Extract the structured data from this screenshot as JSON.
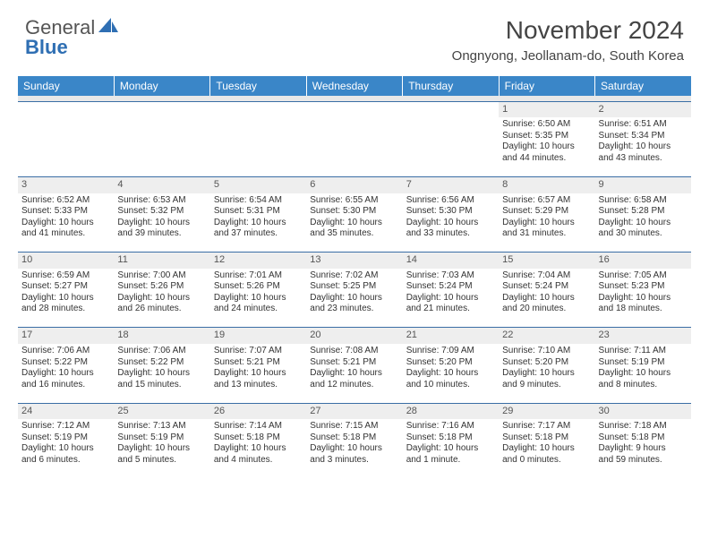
{
  "brand": {
    "name_part1": "General",
    "name_part2": "Blue"
  },
  "title": "November 2024",
  "location": "Ongnyong, Jeollanam-do, South Korea",
  "colors": {
    "header_bg": "#3a86c8",
    "header_text": "#ffffff",
    "daynum_bg": "#eeeeee",
    "row_divider": "#3a6ea5",
    "brand_gray": "#555555",
    "brand_blue": "#2f6fb3"
  },
  "weekdays": [
    "Sunday",
    "Monday",
    "Tuesday",
    "Wednesday",
    "Thursday",
    "Friday",
    "Saturday"
  ],
  "weeks": [
    [
      null,
      null,
      null,
      null,
      null,
      {
        "n": "1",
        "sr": "Sunrise: 6:50 AM",
        "ss": "Sunset: 5:35 PM",
        "dl1": "Daylight: 10 hours",
        "dl2": "and 44 minutes."
      },
      {
        "n": "2",
        "sr": "Sunrise: 6:51 AM",
        "ss": "Sunset: 5:34 PM",
        "dl1": "Daylight: 10 hours",
        "dl2": "and 43 minutes."
      }
    ],
    [
      {
        "n": "3",
        "sr": "Sunrise: 6:52 AM",
        "ss": "Sunset: 5:33 PM",
        "dl1": "Daylight: 10 hours",
        "dl2": "and 41 minutes."
      },
      {
        "n": "4",
        "sr": "Sunrise: 6:53 AM",
        "ss": "Sunset: 5:32 PM",
        "dl1": "Daylight: 10 hours",
        "dl2": "and 39 minutes."
      },
      {
        "n": "5",
        "sr": "Sunrise: 6:54 AM",
        "ss": "Sunset: 5:31 PM",
        "dl1": "Daylight: 10 hours",
        "dl2": "and 37 minutes."
      },
      {
        "n": "6",
        "sr": "Sunrise: 6:55 AM",
        "ss": "Sunset: 5:30 PM",
        "dl1": "Daylight: 10 hours",
        "dl2": "and 35 minutes."
      },
      {
        "n": "7",
        "sr": "Sunrise: 6:56 AM",
        "ss": "Sunset: 5:30 PM",
        "dl1": "Daylight: 10 hours",
        "dl2": "and 33 minutes."
      },
      {
        "n": "8",
        "sr": "Sunrise: 6:57 AM",
        "ss": "Sunset: 5:29 PM",
        "dl1": "Daylight: 10 hours",
        "dl2": "and 31 minutes."
      },
      {
        "n": "9",
        "sr": "Sunrise: 6:58 AM",
        "ss": "Sunset: 5:28 PM",
        "dl1": "Daylight: 10 hours",
        "dl2": "and 30 minutes."
      }
    ],
    [
      {
        "n": "10",
        "sr": "Sunrise: 6:59 AM",
        "ss": "Sunset: 5:27 PM",
        "dl1": "Daylight: 10 hours",
        "dl2": "and 28 minutes."
      },
      {
        "n": "11",
        "sr": "Sunrise: 7:00 AM",
        "ss": "Sunset: 5:26 PM",
        "dl1": "Daylight: 10 hours",
        "dl2": "and 26 minutes."
      },
      {
        "n": "12",
        "sr": "Sunrise: 7:01 AM",
        "ss": "Sunset: 5:26 PM",
        "dl1": "Daylight: 10 hours",
        "dl2": "and 24 minutes."
      },
      {
        "n": "13",
        "sr": "Sunrise: 7:02 AM",
        "ss": "Sunset: 5:25 PM",
        "dl1": "Daylight: 10 hours",
        "dl2": "and 23 minutes."
      },
      {
        "n": "14",
        "sr": "Sunrise: 7:03 AM",
        "ss": "Sunset: 5:24 PM",
        "dl1": "Daylight: 10 hours",
        "dl2": "and 21 minutes."
      },
      {
        "n": "15",
        "sr": "Sunrise: 7:04 AM",
        "ss": "Sunset: 5:24 PM",
        "dl1": "Daylight: 10 hours",
        "dl2": "and 20 minutes."
      },
      {
        "n": "16",
        "sr": "Sunrise: 7:05 AM",
        "ss": "Sunset: 5:23 PM",
        "dl1": "Daylight: 10 hours",
        "dl2": "and 18 minutes."
      }
    ],
    [
      {
        "n": "17",
        "sr": "Sunrise: 7:06 AM",
        "ss": "Sunset: 5:22 PM",
        "dl1": "Daylight: 10 hours",
        "dl2": "and 16 minutes."
      },
      {
        "n": "18",
        "sr": "Sunrise: 7:06 AM",
        "ss": "Sunset: 5:22 PM",
        "dl1": "Daylight: 10 hours",
        "dl2": "and 15 minutes."
      },
      {
        "n": "19",
        "sr": "Sunrise: 7:07 AM",
        "ss": "Sunset: 5:21 PM",
        "dl1": "Daylight: 10 hours",
        "dl2": "and 13 minutes."
      },
      {
        "n": "20",
        "sr": "Sunrise: 7:08 AM",
        "ss": "Sunset: 5:21 PM",
        "dl1": "Daylight: 10 hours",
        "dl2": "and 12 minutes."
      },
      {
        "n": "21",
        "sr": "Sunrise: 7:09 AM",
        "ss": "Sunset: 5:20 PM",
        "dl1": "Daylight: 10 hours",
        "dl2": "and 10 minutes."
      },
      {
        "n": "22",
        "sr": "Sunrise: 7:10 AM",
        "ss": "Sunset: 5:20 PM",
        "dl1": "Daylight: 10 hours",
        "dl2": "and 9 minutes."
      },
      {
        "n": "23",
        "sr": "Sunrise: 7:11 AM",
        "ss": "Sunset: 5:19 PM",
        "dl1": "Daylight: 10 hours",
        "dl2": "and 8 minutes."
      }
    ],
    [
      {
        "n": "24",
        "sr": "Sunrise: 7:12 AM",
        "ss": "Sunset: 5:19 PM",
        "dl1": "Daylight: 10 hours",
        "dl2": "and 6 minutes."
      },
      {
        "n": "25",
        "sr": "Sunrise: 7:13 AM",
        "ss": "Sunset: 5:19 PM",
        "dl1": "Daylight: 10 hours",
        "dl2": "and 5 minutes."
      },
      {
        "n": "26",
        "sr": "Sunrise: 7:14 AM",
        "ss": "Sunset: 5:18 PM",
        "dl1": "Daylight: 10 hours",
        "dl2": "and 4 minutes."
      },
      {
        "n": "27",
        "sr": "Sunrise: 7:15 AM",
        "ss": "Sunset: 5:18 PM",
        "dl1": "Daylight: 10 hours",
        "dl2": "and 3 minutes."
      },
      {
        "n": "28",
        "sr": "Sunrise: 7:16 AM",
        "ss": "Sunset: 5:18 PM",
        "dl1": "Daylight: 10 hours",
        "dl2": "and 1 minute."
      },
      {
        "n": "29",
        "sr": "Sunrise: 7:17 AM",
        "ss": "Sunset: 5:18 PM",
        "dl1": "Daylight: 10 hours",
        "dl2": "and 0 minutes."
      },
      {
        "n": "30",
        "sr": "Sunrise: 7:18 AM",
        "ss": "Sunset: 5:18 PM",
        "dl1": "Daylight: 9 hours",
        "dl2": "and 59 minutes."
      }
    ]
  ]
}
